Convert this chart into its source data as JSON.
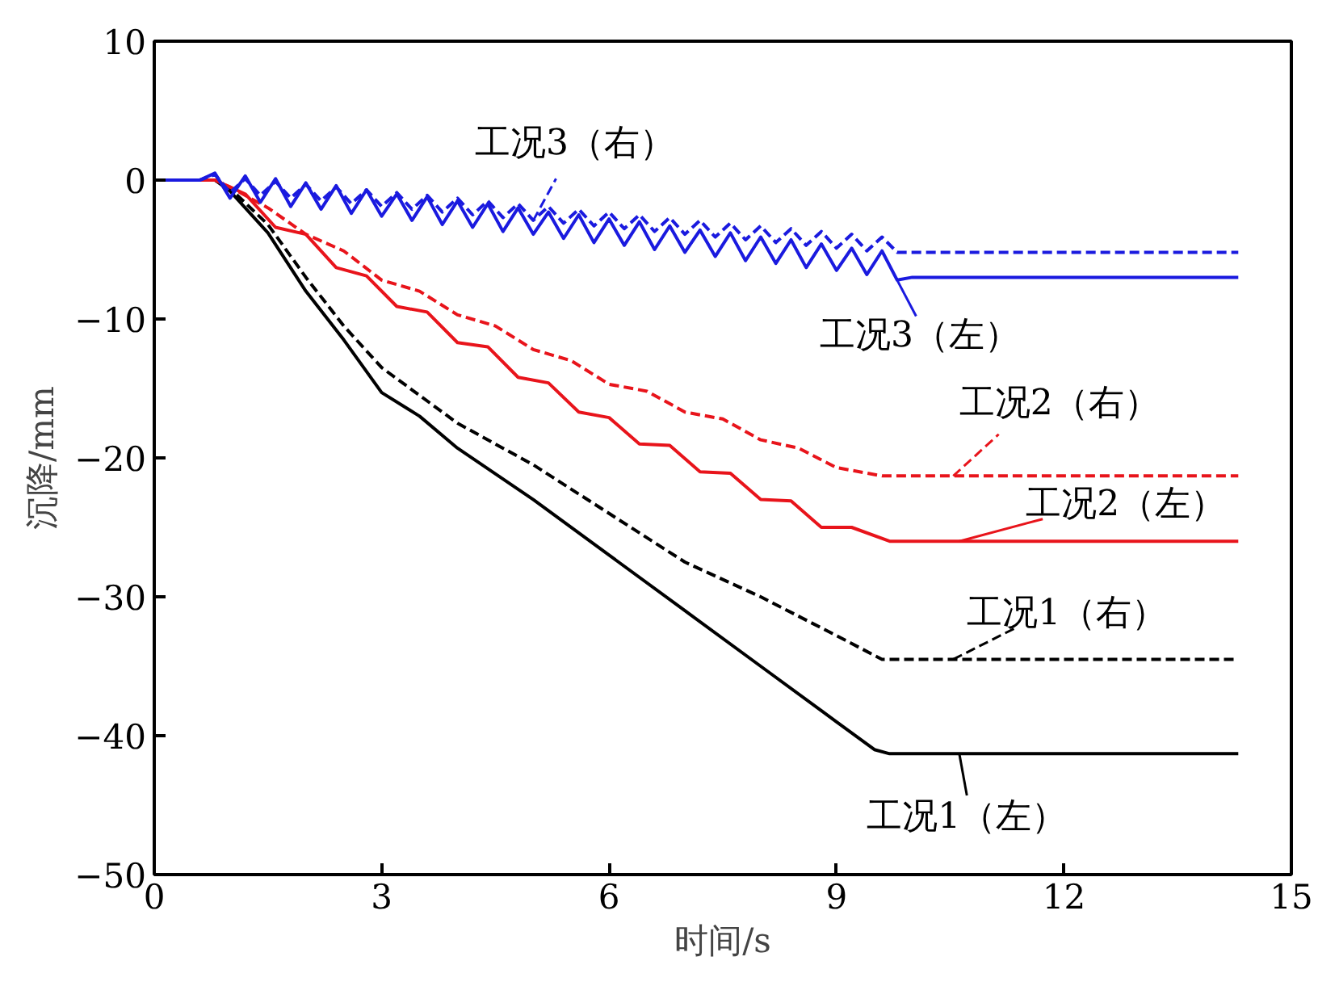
{
  "chart_data": {
    "type": "line",
    "xlabel": "时间/s",
    "ylabel": "沉降/mm",
    "xlim": [
      0,
      15
    ],
    "ylim": [
      -50,
      10
    ],
    "xticks": [
      0,
      3,
      6,
      9,
      12,
      15
    ],
    "yticks": [
      -50,
      -40,
      -30,
      -20,
      -10,
      0,
      10
    ],
    "grid": false,
    "legend": "right",
    "marker": "none",
    "series": [
      {
        "name": "工况1（左）",
        "color": "#000000",
        "line_style": "solid",
        "x": [
          0,
          0.8,
          1.0,
          1.5,
          2.0,
          2.5,
          3.0,
          3.5,
          4.0,
          5.0,
          6.0,
          7.0,
          8.0,
          9.0,
          9.5,
          9.7,
          14.3
        ],
        "values": [
          0,
          0,
          -0.8,
          -3.8,
          -8,
          -11.5,
          -15.3,
          -17,
          -19.3,
          -23,
          -27,
          -31,
          -35,
          -39,
          -41,
          -41.3,
          -41.3
        ]
      },
      {
        "name": "工况1（右）",
        "color": "#000000",
        "line_style": "dashed",
        "x": [
          0,
          0.8,
          1.0,
          1.5,
          2.0,
          2.5,
          3.0,
          3.5,
          4.0,
          5.0,
          6.0,
          7.0,
          8.0,
          9.0,
          9.6,
          14.3
        ],
        "values": [
          0,
          0,
          -0.6,
          -3.2,
          -7,
          -10.5,
          -13.5,
          -15.5,
          -17.5,
          -20.5,
          -24,
          -27.5,
          -30,
          -32.8,
          -34.5,
          -34.5
        ]
      },
      {
        "name": "工况2（左）",
        "color": "#e8141b",
        "line_style": "solid",
        "x": [
          0,
          0.8,
          1.2,
          1.6,
          2.0,
          2.4,
          2.8,
          3.2,
          3.6,
          4.0,
          4.4,
          4.8,
          5.2,
          5.6,
          6.0,
          6.4,
          6.8,
          7.2,
          7.6,
          8.0,
          8.4,
          8.8,
          9.2,
          9.7,
          14.3
        ],
        "values": [
          0,
          0,
          -1.0,
          -3.4,
          -3.9,
          -6.3,
          -6.9,
          -9.1,
          -9.5,
          -11.7,
          -12.0,
          -14.2,
          -14.6,
          -16.7,
          -17.1,
          -19.0,
          -19.1,
          -21.0,
          -21.1,
          -23.0,
          -23.1,
          -25.0,
          -25.0,
          -26,
          -26
        ]
      },
      {
        "name": "工况2（右）",
        "color": "#e8141b",
        "line_style": "dashed",
        "x": [
          0,
          0.8,
          1.0,
          1.5,
          2.0,
          2.5,
          3.0,
          3.5,
          4.0,
          4.5,
          5.0,
          5.5,
          6.0,
          6.5,
          7.0,
          7.5,
          8.0,
          8.5,
          9.0,
          9.6,
          14.3
        ],
        "values": [
          0,
          0,
          -0.5,
          -2.0,
          -3.9,
          -5.1,
          -7.2,
          -8.0,
          -9.7,
          -10.5,
          -12.2,
          -13.0,
          -14.7,
          -15.2,
          -16.7,
          -17.2,
          -18.7,
          -19.3,
          -20.7,
          -21.3,
          -21.3
        ]
      },
      {
        "name": "工况3（左）",
        "color": "#1a1adf",
        "line_style": "solid",
        "x": [
          0,
          0.6,
          0.8,
          1.0,
          1.2,
          1.4,
          1.6,
          1.8,
          2.0,
          2.2,
          2.4,
          2.6,
          2.8,
          3.0,
          3.2,
          3.4,
          3.6,
          3.8,
          4.0,
          4.2,
          4.4,
          4.6,
          4.8,
          5.0,
          5.2,
          5.4,
          5.6,
          5.8,
          6.0,
          6.2,
          6.4,
          6.6,
          6.8,
          7.0,
          7.2,
          7.4,
          7.6,
          7.8,
          8.0,
          8.2,
          8.4,
          8.6,
          8.8,
          9.0,
          9.2,
          9.4,
          9.6,
          9.8,
          10.0,
          14.3
        ],
        "values": [
          0,
          0,
          0.5,
          -1.3,
          0.3,
          -1.6,
          0.1,
          -1.9,
          -0.2,
          -2.1,
          -0.4,
          -2.4,
          -0.7,
          -2.6,
          -1.0,
          -2.9,
          -1.2,
          -3.2,
          -1.5,
          -3.4,
          -1.7,
          -3.7,
          -2.0,
          -3.9,
          -2.3,
          -4.2,
          -2.5,
          -4.5,
          -2.8,
          -4.7,
          -3.0,
          -5.0,
          -3.3,
          -5.2,
          -3.6,
          -5.5,
          -3.8,
          -5.8,
          -4.1,
          -6.0,
          -4.3,
          -6.3,
          -4.6,
          -6.5,
          -4.9,
          -6.8,
          -5.1,
          -7.2,
          -7,
          -7
        ]
      },
      {
        "name": "工况3（右）",
        "color": "#1a1adf",
        "line_style": "dashed",
        "x": [
          0,
          0.6,
          0.8,
          1.0,
          1.2,
          1.4,
          1.6,
          1.8,
          2.0,
          2.2,
          2.4,
          2.6,
          2.8,
          3.0,
          3.2,
          3.4,
          3.6,
          3.8,
          4.0,
          4.2,
          4.4,
          4.6,
          4.8,
          5.0,
          5.2,
          5.4,
          5.6,
          5.8,
          6.0,
          6.2,
          6.4,
          6.6,
          6.8,
          7.0,
          7.2,
          7.4,
          7.6,
          7.8,
          8.0,
          8.2,
          8.4,
          8.6,
          8.8,
          9.0,
          9.2,
          9.4,
          9.6,
          9.8,
          14.3
        ],
        "values": [
          0,
          0,
          0.4,
          -0.9,
          0.1,
          -1.1,
          -0.1,
          -1.3,
          -0.3,
          -1.5,
          -0.5,
          -1.7,
          -0.7,
          -1.9,
          -0.9,
          -2.1,
          -1.1,
          -2.3,
          -1.3,
          -2.5,
          -1.5,
          -2.7,
          -1.7,
          -2.9,
          -1.9,
          -3.1,
          -2.1,
          -3.3,
          -2.3,
          -3.5,
          -2.5,
          -3.7,
          -2.7,
          -3.9,
          -2.9,
          -4.1,
          -3.1,
          -4.3,
          -3.3,
          -4.5,
          -3.5,
          -4.7,
          -3.7,
          -4.9,
          -3.9,
          -5.1,
          -4.1,
          -5.2,
          -5.2
        ]
      }
    ]
  }
}
